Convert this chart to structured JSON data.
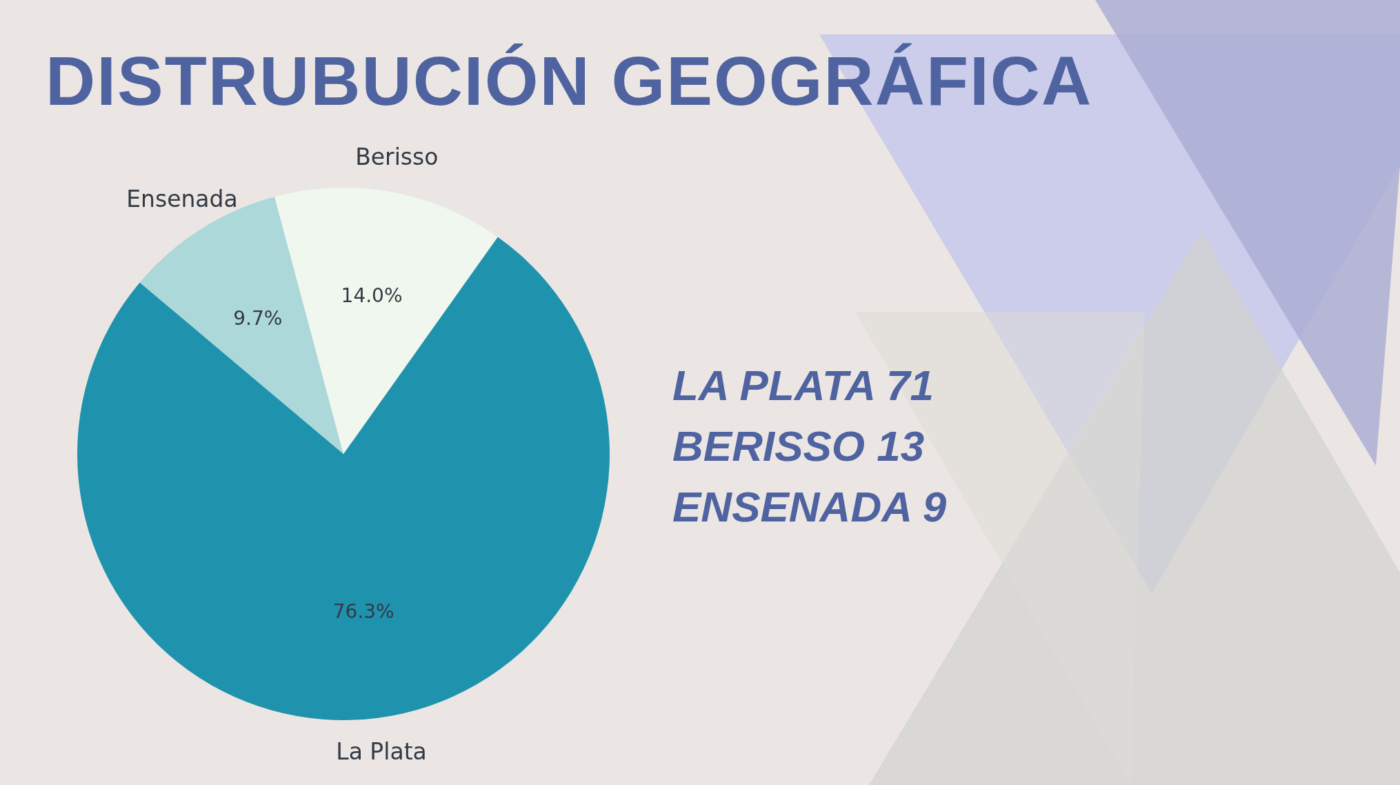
{
  "chart_data": {
    "type": "pie",
    "title": "DISTRUBUCIÓN GEOGRÁFICA",
    "categories": [
      "La Plata",
      "Ensenada",
      "Berisso"
    ],
    "values": [
      76.3,
      9.7,
      14.0
    ],
    "colors": [
      "#1f93ad",
      "#acd8d9",
      "#eff7ee"
    ],
    "value_labels": [
      "76.3%",
      "9.7%",
      "14.0%"
    ],
    "annotations": [
      "LA PLATA 71",
      "BERISSO 13",
      "ENSENADA 9"
    ]
  }
}
